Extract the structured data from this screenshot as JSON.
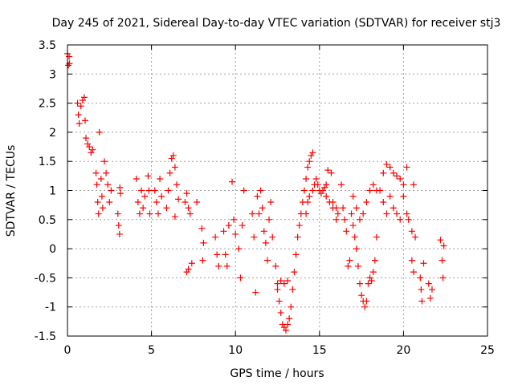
{
  "chart_data": {
    "type": "scatter",
    "title": "Day 245 of 2021, Sidereal Day-to-day VTEC variation (SDTVAR) for receiver stj3",
    "xlabel": "GPS time / hours",
    "ylabel": "SDTVAR / TECUs",
    "xlim": [
      0,
      25
    ],
    "ylim": [
      -1.5,
      3.5
    ],
    "xticks": [
      "0",
      "5",
      "10",
      "15",
      "20",
      "25"
    ],
    "yticks": [
      "-1.5",
      "-1",
      "-0.5",
      "0",
      "0.5",
      "1",
      "1.5",
      "2",
      "2.5",
      "3",
      "3.5"
    ],
    "grid": true,
    "marker": "+",
    "series": [
      {
        "name": "SDTVAR",
        "color": "#ff0000",
        "points": [
          [
            0.0,
            3.35
          ],
          [
            0.05,
            3.15
          ],
          [
            0.1,
            3.3
          ],
          [
            0.12,
            3.18
          ],
          [
            0.6,
            2.5
          ],
          [
            0.65,
            2.3
          ],
          [
            0.7,
            2.15
          ],
          [
            0.8,
            2.45
          ],
          [
            0.9,
            2.55
          ],
          [
            1.0,
            2.6
          ],
          [
            1.05,
            2.2
          ],
          [
            1.1,
            1.9
          ],
          [
            1.2,
            1.8
          ],
          [
            1.3,
            1.75
          ],
          [
            1.4,
            1.65
          ],
          [
            1.5,
            1.7
          ],
          [
            1.7,
            1.3
          ],
          [
            1.75,
            1.1
          ],
          [
            1.8,
            0.8
          ],
          [
            1.85,
            0.6
          ],
          [
            1.9,
            2.0
          ],
          [
            2.0,
            1.2
          ],
          [
            2.05,
            0.9
          ],
          [
            2.1,
            0.7
          ],
          [
            2.2,
            1.5
          ],
          [
            2.3,
            1.3
          ],
          [
            2.4,
            1.1
          ],
          [
            2.5,
            0.8
          ],
          [
            2.6,
            1.0
          ],
          [
            3.0,
            0.6
          ],
          [
            3.05,
            0.4
          ],
          [
            3.1,
            0.25
          ],
          [
            3.12,
            1.05
          ],
          [
            3.15,
            0.95
          ],
          [
            4.1,
            1.2
          ],
          [
            4.2,
            0.8
          ],
          [
            4.3,
            0.6
          ],
          [
            4.4,
            1.0
          ],
          [
            4.5,
            0.7
          ],
          [
            4.6,
            0.9
          ],
          [
            4.8,
            1.25
          ],
          [
            4.85,
            1.0
          ],
          [
            4.9,
            0.6
          ],
          [
            5.2,
            1.0
          ],
          [
            5.3,
            0.8
          ],
          [
            5.4,
            0.6
          ],
          [
            5.5,
            1.2
          ],
          [
            5.6,
            0.9
          ],
          [
            5.9,
            0.7
          ],
          [
            6.0,
            1.0
          ],
          [
            6.1,
            1.3
          ],
          [
            6.2,
            1.55
          ],
          [
            6.3,
            1.6
          ],
          [
            6.4,
            1.4
          ],
          [
            6.5,
            1.1
          ],
          [
            6.6,
            0.85
          ],
          [
            6.4,
            0.55
          ],
          [
            7.0,
            0.8
          ],
          [
            7.1,
            0.95
          ],
          [
            7.2,
            0.7
          ],
          [
            7.3,
            0.6
          ],
          [
            7.1,
            -0.4
          ],
          [
            7.2,
            -0.35
          ],
          [
            7.4,
            -0.25
          ],
          [
            7.7,
            0.8
          ],
          [
            8.0,
            0.35
          ],
          [
            8.1,
            0.1
          ],
          [
            8.05,
            -0.2
          ],
          [
            8.8,
            0.2
          ],
          [
            8.9,
            -0.1
          ],
          [
            9.0,
            -0.3
          ],
          [
            9.3,
            0.3
          ],
          [
            9.4,
            -0.1
          ],
          [
            9.5,
            -0.3
          ],
          [
            9.6,
            0.4
          ],
          [
            9.8,
            1.15
          ],
          [
            9.9,
            0.5
          ],
          [
            10.0,
            0.25
          ],
          [
            10.2,
            0.0
          ],
          [
            10.3,
            -0.5
          ],
          [
            10.4,
            0.4
          ],
          [
            10.5,
            1.0
          ],
          [
            11.0,
            0.6
          ],
          [
            11.1,
            0.2
          ],
          [
            11.2,
            -0.75
          ],
          [
            11.3,
            0.9
          ],
          [
            11.4,
            0.6
          ],
          [
            11.5,
            1.0
          ],
          [
            11.6,
            0.7
          ],
          [
            11.7,
            0.3
          ],
          [
            11.8,
            0.1
          ],
          [
            11.9,
            -0.2
          ],
          [
            12.0,
            0.5
          ],
          [
            12.1,
            0.8
          ],
          [
            12.2,
            0.2
          ],
          [
            12.4,
            -0.3
          ],
          [
            12.5,
            -0.7
          ],
          [
            12.6,
            -0.9
          ],
          [
            12.7,
            -1.1
          ],
          [
            12.8,
            -1.3
          ],
          [
            12.9,
            -1.35
          ],
          [
            13.0,
            -1.4
          ],
          [
            13.1,
            -1.3
          ],
          [
            13.2,
            -1.2
          ],
          [
            13.3,
            -1.0
          ],
          [
            12.5,
            -0.6
          ],
          [
            12.7,
            -0.55
          ],
          [
            12.9,
            -0.6
          ],
          [
            13.1,
            -0.55
          ],
          [
            13.4,
            -0.7
          ],
          [
            13.5,
            -0.4
          ],
          [
            13.6,
            -0.1
          ],
          [
            13.7,
            0.2
          ],
          [
            13.8,
            0.4
          ],
          [
            13.9,
            0.6
          ],
          [
            14.0,
            0.8
          ],
          [
            14.1,
            1.0
          ],
          [
            14.2,
            1.2
          ],
          [
            14.3,
            1.4
          ],
          [
            14.4,
            1.5
          ],
          [
            14.5,
            1.6
          ],
          [
            14.6,
            1.65
          ],
          [
            14.2,
            0.6
          ],
          [
            14.3,
            0.8
          ],
          [
            14.4,
            0.9
          ],
          [
            14.6,
            1.0
          ],
          [
            14.7,
            1.1
          ],
          [
            14.8,
            1.2
          ],
          [
            14.9,
            1.1
          ],
          [
            15.0,
            1.0
          ],
          [
            15.1,
            0.95
          ],
          [
            15.2,
            1.0
          ],
          [
            15.3,
            1.05
          ],
          [
            15.4,
            1.1
          ],
          [
            15.5,
            1.35
          ],
          [
            15.7,
            1.3
          ],
          [
            15.8,
            0.8
          ],
          [
            16.0,
            0.5
          ],
          [
            16.1,
            0.6
          ],
          [
            15.4,
            0.9
          ],
          [
            15.6,
            0.8
          ],
          [
            15.8,
            0.7
          ],
          [
            16.0,
            0.7
          ],
          [
            16.3,
            1.1
          ],
          [
            16.4,
            0.7
          ],
          [
            16.5,
            0.5
          ],
          [
            16.6,
            0.3
          ],
          [
            16.7,
            -0.3
          ],
          [
            16.8,
            -0.2
          ],
          [
            16.9,
            0.6
          ],
          [
            17.0,
            0.4
          ],
          [
            17.1,
            0.2
          ],
          [
            17.2,
            0.0
          ],
          [
            17.3,
            -0.3
          ],
          [
            17.4,
            -0.6
          ],
          [
            17.5,
            -0.8
          ],
          [
            17.6,
            -0.9
          ],
          [
            17.7,
            -1.0
          ],
          [
            17.8,
            -0.9
          ],
          [
            17.9,
            -0.6
          ],
          [
            18.0,
            -0.5
          ],
          [
            18.1,
            -0.55
          ],
          [
            18.2,
            -0.4
          ],
          [
            18.3,
            -0.2
          ],
          [
            18.4,
            0.2
          ],
          [
            17.0,
            0.9
          ],
          [
            17.2,
            0.7
          ],
          [
            17.4,
            0.5
          ],
          [
            17.6,
            0.6
          ],
          [
            17.8,
            0.8
          ],
          [
            18.0,
            1.0
          ],
          [
            18.2,
            1.1
          ],
          [
            18.4,
            1.0
          ],
          [
            18.6,
            1.0
          ],
          [
            18.8,
            1.3
          ],
          [
            19.0,
            1.45
          ],
          [
            19.2,
            1.4
          ],
          [
            19.4,
            1.3
          ],
          [
            19.6,
            1.25
          ],
          [
            19.8,
            1.2
          ],
          [
            20.0,
            1.1
          ],
          [
            20.2,
            1.4
          ],
          [
            18.8,
            0.8
          ],
          [
            19.0,
            0.6
          ],
          [
            19.2,
            0.9
          ],
          [
            19.4,
            0.7
          ],
          [
            19.6,
            0.6
          ],
          [
            19.8,
            0.5
          ],
          [
            20.0,
            0.9
          ],
          [
            20.2,
            0.6
          ],
          [
            20.3,
            0.5
          ],
          [
            20.5,
            0.3
          ],
          [
            20.6,
            1.1
          ],
          [
            20.7,
            0.2
          ],
          [
            20.5,
            -0.2
          ],
          [
            20.6,
            -0.4
          ],
          [
            21.0,
            -0.5
          ],
          [
            21.05,
            -0.7
          ],
          [
            21.1,
            -0.9
          ],
          [
            21.2,
            -0.25
          ],
          [
            21.5,
            -0.6
          ],
          [
            21.6,
            -0.85
          ],
          [
            21.7,
            -0.7
          ],
          [
            22.2,
            0.15
          ],
          [
            22.3,
            -0.2
          ],
          [
            22.35,
            -0.5
          ],
          [
            22.4,
            0.05
          ]
        ]
      }
    ]
  }
}
